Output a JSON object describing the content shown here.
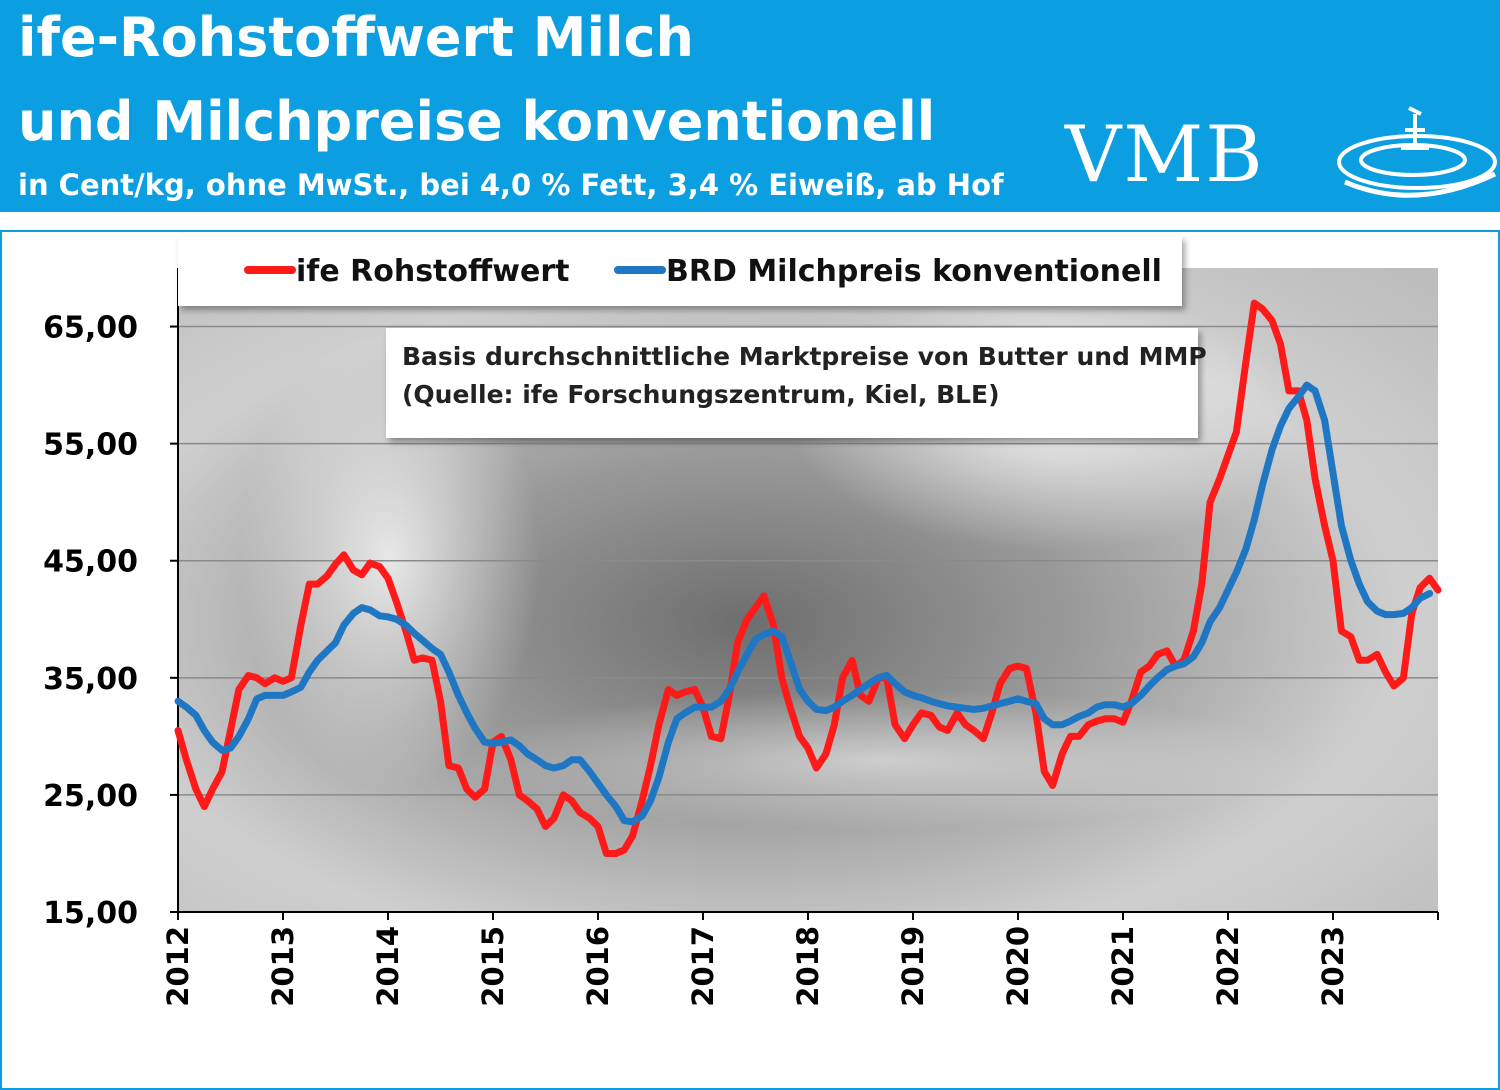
{
  "header": {
    "title_line1": "ife-Rohstoffwert Milch",
    "title_line2": "und Milchpreise konventionell",
    "subtitle": "in Cent/kg, ohne MwSt., bei 4,0 % Fett, 3,4 % Eiweiß, ab Hof",
    "logo_text": "VMB",
    "logo_icon": "vmb-swirl-icon"
  },
  "note": {
    "line1": "Basis durchschnittliche Marktpreise von Butter und MMP",
    "line2": "(Quelle: ife Forschungszentrum, Kiel, BLE)"
  },
  "colors": {
    "header": "#0b9ee0",
    "red": "#ff1a1a",
    "blue": "#1f77c4"
  },
  "chart_data": {
    "type": "line",
    "title": "",
    "xlabel": "",
    "ylabel": "",
    "ylim": [
      15,
      70
    ],
    "xlim": [
      2012,
      2024
    ],
    "yticks": [
      15,
      25,
      35,
      45,
      55,
      65
    ],
    "ytick_labels": [
      "15,00",
      "25,00",
      "35,00",
      "45,00",
      "55,00",
      "65,00"
    ],
    "xticks": [
      2012,
      2013,
      2014,
      2015,
      2016,
      2017,
      2018,
      2019,
      2020,
      2021,
      2022,
      2023
    ],
    "xtick_labels": [
      "2012",
      "2013",
      "2014",
      "2015",
      "2016",
      "2017",
      "2018",
      "2019",
      "2020",
      "2021",
      "2022",
      "2023"
    ],
    "grid": true,
    "legend_position": "top",
    "series": [
      {
        "name": "ife Rohstoffwert",
        "color": "#ff1a1a",
        "points": [
          [
            2012.0,
            30.5
          ],
          [
            2012.08,
            28
          ],
          [
            2012.17,
            25.5
          ],
          [
            2012.25,
            24
          ],
          [
            2012.33,
            25.5
          ],
          [
            2012.42,
            27
          ],
          [
            2012.5,
            30.5
          ],
          [
            2012.58,
            34
          ],
          [
            2012.67,
            35.2
          ],
          [
            2012.75,
            35
          ],
          [
            2012.83,
            34.5
          ],
          [
            2012.92,
            35
          ],
          [
            2013.0,
            34.7
          ],
          [
            2013.08,
            35
          ],
          [
            2013.17,
            39.5
          ],
          [
            2013.25,
            43
          ],
          [
            2013.33,
            43
          ],
          [
            2013.42,
            43.7
          ],
          [
            2013.5,
            44.7
          ],
          [
            2013.58,
            45.5
          ],
          [
            2013.67,
            44.2
          ],
          [
            2013.75,
            43.8
          ],
          [
            2013.83,
            44.8
          ],
          [
            2013.92,
            44.5
          ],
          [
            2014.0,
            43.5
          ],
          [
            2014.08,
            41.5
          ],
          [
            2014.17,
            39
          ],
          [
            2014.25,
            36.5
          ],
          [
            2014.33,
            36.7
          ],
          [
            2014.42,
            36.5
          ],
          [
            2014.5,
            33
          ],
          [
            2014.58,
            27.5
          ],
          [
            2014.67,
            27.3
          ],
          [
            2014.75,
            25.5
          ],
          [
            2014.83,
            24.8
          ],
          [
            2014.92,
            25.5
          ],
          [
            2015.0,
            29.5
          ],
          [
            2015.08,
            30
          ],
          [
            2015.17,
            28
          ],
          [
            2015.25,
            25
          ],
          [
            2015.33,
            24.5
          ],
          [
            2015.42,
            23.8
          ],
          [
            2015.5,
            22.3
          ],
          [
            2015.58,
            23
          ],
          [
            2015.67,
            25
          ],
          [
            2015.75,
            24.5
          ],
          [
            2015.83,
            23.5
          ],
          [
            2015.92,
            23
          ],
          [
            2016.0,
            22.3
          ],
          [
            2016.08,
            20
          ],
          [
            2016.17,
            20
          ],
          [
            2016.25,
            20.3
          ],
          [
            2016.33,
            21.5
          ],
          [
            2016.42,
            24.5
          ],
          [
            2016.5,
            27.5
          ],
          [
            2016.58,
            31
          ],
          [
            2016.67,
            34
          ],
          [
            2016.75,
            33.5
          ],
          [
            2016.83,
            33.8
          ],
          [
            2016.92,
            34
          ],
          [
            2017.0,
            32.5
          ],
          [
            2017.08,
            30
          ],
          [
            2017.17,
            29.8
          ],
          [
            2017.25,
            33.5
          ],
          [
            2017.33,
            38
          ],
          [
            2017.42,
            40
          ],
          [
            2017.5,
            41
          ],
          [
            2017.58,
            42
          ],
          [
            2017.67,
            39.5
          ],
          [
            2017.75,
            35
          ],
          [
            2017.83,
            32.5
          ],
          [
            2017.92,
            30
          ],
          [
            2018.0,
            29
          ],
          [
            2018.08,
            27.3
          ],
          [
            2018.17,
            28.5
          ],
          [
            2018.25,
            31
          ],
          [
            2018.33,
            35
          ],
          [
            2018.42,
            36.5
          ],
          [
            2018.5,
            33.5
          ],
          [
            2018.58,
            33
          ],
          [
            2018.67,
            35
          ],
          [
            2018.75,
            35
          ],
          [
            2018.83,
            31
          ],
          [
            2018.92,
            29.8
          ],
          [
            2019.0,
            31
          ],
          [
            2019.08,
            32
          ],
          [
            2019.17,
            31.8
          ],
          [
            2019.25,
            30.8
          ],
          [
            2019.33,
            30.5
          ],
          [
            2019.42,
            32
          ],
          [
            2019.5,
            31
          ],
          [
            2019.58,
            30.5
          ],
          [
            2019.67,
            29.8
          ],
          [
            2019.75,
            32
          ],
          [
            2019.83,
            34.5
          ],
          [
            2019.92,
            35.8
          ],
          [
            2020.0,
            36
          ],
          [
            2020.08,
            35.8
          ],
          [
            2020.17,
            32
          ],
          [
            2020.25,
            27
          ],
          [
            2020.33,
            25.8
          ],
          [
            2020.42,
            28.5
          ],
          [
            2020.5,
            30
          ],
          [
            2020.58,
            30
          ],
          [
            2020.67,
            31
          ],
          [
            2020.75,
            31.3
          ],
          [
            2020.83,
            31.5
          ],
          [
            2020.92,
            31.5
          ],
          [
            2021.0,
            31.2
          ],
          [
            2021.08,
            33
          ],
          [
            2021.17,
            35.5
          ],
          [
            2021.25,
            36
          ],
          [
            2021.33,
            37
          ],
          [
            2021.42,
            37.3
          ],
          [
            2021.5,
            36
          ],
          [
            2021.58,
            36.5
          ],
          [
            2021.67,
            39
          ],
          [
            2021.75,
            43
          ],
          [
            2021.83,
            50
          ],
          [
            2021.92,
            52
          ],
          [
            2022.0,
            54
          ],
          [
            2022.08,
            56
          ],
          [
            2022.17,
            62
          ],
          [
            2022.25,
            67
          ],
          [
            2022.33,
            66.5
          ],
          [
            2022.42,
            65.5
          ],
          [
            2022.5,
            63.5
          ],
          [
            2022.58,
            59.5
          ],
          [
            2022.67,
            59.5
          ],
          [
            2022.75,
            57
          ],
          [
            2022.83,
            52
          ],
          [
            2022.92,
            48
          ],
          [
            2023.0,
            45
          ],
          [
            2023.08,
            39
          ],
          [
            2023.17,
            38.5
          ],
          [
            2023.25,
            36.5
          ],
          [
            2023.33,
            36.5
          ],
          [
            2023.42,
            37
          ],
          [
            2023.5,
            35.5
          ],
          [
            2023.58,
            34.3
          ],
          [
            2023.67,
            35
          ],
          [
            2023.75,
            40.5
          ],
          [
            2023.83,
            42.7
          ],
          [
            2023.92,
            43.5
          ],
          [
            2024.0,
            42.5
          ]
        ]
      },
      {
        "name": "BRD Milchpreis konventionell",
        "color": "#1f77c4",
        "points": [
          [
            2012.0,
            33
          ],
          [
            2012.08,
            32.5
          ],
          [
            2012.17,
            31.8
          ],
          [
            2012.25,
            30.5
          ],
          [
            2012.33,
            29.5
          ],
          [
            2012.42,
            28.8
          ],
          [
            2012.5,
            29
          ],
          [
            2012.58,
            30
          ],
          [
            2012.67,
            31.5
          ],
          [
            2012.75,
            33.2
          ],
          [
            2012.83,
            33.5
          ],
          [
            2012.92,
            33.5
          ],
          [
            2013.0,
            33.5
          ],
          [
            2013.08,
            33.8
          ],
          [
            2013.17,
            34.2
          ],
          [
            2013.25,
            35.5
          ],
          [
            2013.33,
            36.5
          ],
          [
            2013.42,
            37.3
          ],
          [
            2013.5,
            38
          ],
          [
            2013.58,
            39.5
          ],
          [
            2013.67,
            40.5
          ],
          [
            2013.75,
            41
          ],
          [
            2013.83,
            40.8
          ],
          [
            2013.92,
            40.3
          ],
          [
            2014.0,
            40.2
          ],
          [
            2014.08,
            40
          ],
          [
            2014.17,
            39.5
          ],
          [
            2014.25,
            38.8
          ],
          [
            2014.33,
            38.2
          ],
          [
            2014.42,
            37.5
          ],
          [
            2014.5,
            37
          ],
          [
            2014.58,
            35.5
          ],
          [
            2014.67,
            33.5
          ],
          [
            2014.75,
            32
          ],
          [
            2014.83,
            30.7
          ],
          [
            2014.92,
            29.5
          ],
          [
            2015.0,
            29.4
          ],
          [
            2015.08,
            29.5
          ],
          [
            2015.17,
            29.7
          ],
          [
            2015.25,
            29.2
          ],
          [
            2015.33,
            28.5
          ],
          [
            2015.42,
            28
          ],
          [
            2015.5,
            27.5
          ],
          [
            2015.58,
            27.3
          ],
          [
            2015.67,
            27.5
          ],
          [
            2015.75,
            28
          ],
          [
            2015.83,
            28
          ],
          [
            2015.92,
            27
          ],
          [
            2016.0,
            26
          ],
          [
            2016.08,
            25
          ],
          [
            2016.17,
            24
          ],
          [
            2016.25,
            22.8
          ],
          [
            2016.33,
            22.7
          ],
          [
            2016.42,
            23.2
          ],
          [
            2016.5,
            24.5
          ],
          [
            2016.58,
            26.5
          ],
          [
            2016.67,
            29.5
          ],
          [
            2016.75,
            31.5
          ],
          [
            2016.83,
            32
          ],
          [
            2016.92,
            32.5
          ],
          [
            2017.0,
            32.5
          ],
          [
            2017.08,
            32.5
          ],
          [
            2017.17,
            33
          ],
          [
            2017.25,
            34
          ],
          [
            2017.33,
            35.5
          ],
          [
            2017.42,
            37
          ],
          [
            2017.5,
            38.3
          ],
          [
            2017.58,
            38.7
          ],
          [
            2017.67,
            39
          ],
          [
            2017.75,
            38.5
          ],
          [
            2017.83,
            36.5
          ],
          [
            2017.92,
            34
          ],
          [
            2018.0,
            33
          ],
          [
            2018.08,
            32.3
          ],
          [
            2018.17,
            32.2
          ],
          [
            2018.25,
            32.5
          ],
          [
            2018.33,
            33
          ],
          [
            2018.42,
            33.5
          ],
          [
            2018.5,
            34
          ],
          [
            2018.58,
            34.5
          ],
          [
            2018.67,
            35
          ],
          [
            2018.75,
            35.2
          ],
          [
            2018.83,
            34.5
          ],
          [
            2018.92,
            33.8
          ],
          [
            2019.0,
            33.5
          ],
          [
            2019.08,
            33.3
          ],
          [
            2019.17,
            33
          ],
          [
            2019.25,
            32.8
          ],
          [
            2019.33,
            32.6
          ],
          [
            2019.42,
            32.5
          ],
          [
            2019.5,
            32.4
          ],
          [
            2019.58,
            32.3
          ],
          [
            2019.67,
            32.4
          ],
          [
            2019.75,
            32.6
          ],
          [
            2019.83,
            32.8
          ],
          [
            2019.92,
            33
          ],
          [
            2020.0,
            33.2
          ],
          [
            2020.08,
            33
          ],
          [
            2020.17,
            32.8
          ],
          [
            2020.25,
            31.5
          ],
          [
            2020.33,
            31
          ],
          [
            2020.42,
            31
          ],
          [
            2020.5,
            31.3
          ],
          [
            2020.58,
            31.7
          ],
          [
            2020.67,
            32
          ],
          [
            2020.75,
            32.5
          ],
          [
            2020.83,
            32.7
          ],
          [
            2020.92,
            32.7
          ],
          [
            2021.0,
            32.5
          ],
          [
            2021.08,
            32.8
          ],
          [
            2021.17,
            33.5
          ],
          [
            2021.25,
            34.3
          ],
          [
            2021.33,
            35
          ],
          [
            2021.42,
            35.7
          ],
          [
            2021.5,
            36
          ],
          [
            2021.58,
            36.2
          ],
          [
            2021.67,
            36.8
          ],
          [
            2021.75,
            38
          ],
          [
            2021.83,
            39.8
          ],
          [
            2021.92,
            41
          ],
          [
            2022.0,
            42.5
          ],
          [
            2022.08,
            44
          ],
          [
            2022.17,
            46
          ],
          [
            2022.25,
            48.5
          ],
          [
            2022.33,
            51.5
          ],
          [
            2022.42,
            54.5
          ],
          [
            2022.5,
            56.5
          ],
          [
            2022.58,
            58
          ],
          [
            2022.67,
            59
          ],
          [
            2022.75,
            60
          ],
          [
            2022.83,
            59.5
          ],
          [
            2022.92,
            57
          ],
          [
            2023.0,
            52.5
          ],
          [
            2023.08,
            48
          ],
          [
            2023.17,
            45
          ],
          [
            2023.25,
            43
          ],
          [
            2023.33,
            41.5
          ],
          [
            2023.42,
            40.7
          ],
          [
            2023.5,
            40.4
          ],
          [
            2023.58,
            40.4
          ],
          [
            2023.67,
            40.5
          ],
          [
            2023.75,
            41
          ],
          [
            2023.83,
            41.8
          ],
          [
            2023.92,
            42.2
          ]
        ]
      }
    ]
  }
}
